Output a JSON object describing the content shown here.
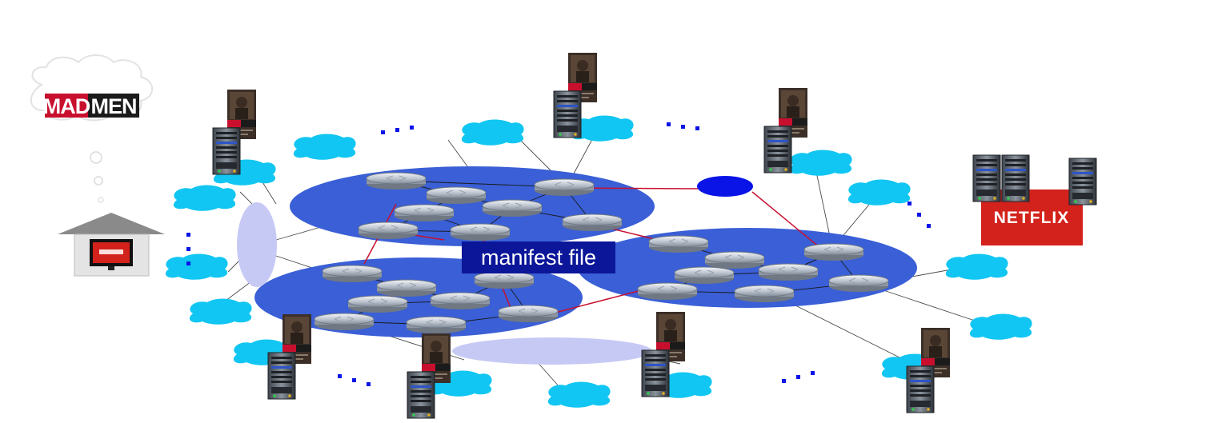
{
  "show_title": "MADMEN",
  "show_title_parts": [
    "MAD",
    "MEN"
  ],
  "service_name": "NETFLIX",
  "manifest_label": "manifest file",
  "ellipsis": "...",
  "colors": {
    "network": "#3a5fd6",
    "access_net": "#11c6f2",
    "edge_router": "#0a14e6",
    "link": "#c8102e",
    "manifest_bg": "#0b1699",
    "netflix_red": "#d3221b",
    "access_link": "#c7c9f5"
  },
  "icons": {
    "router": "router-icon",
    "server": "server-icon",
    "poster": "poster-icon",
    "house": "house-icon",
    "thought_cloud": "thought-cloud-icon"
  }
}
